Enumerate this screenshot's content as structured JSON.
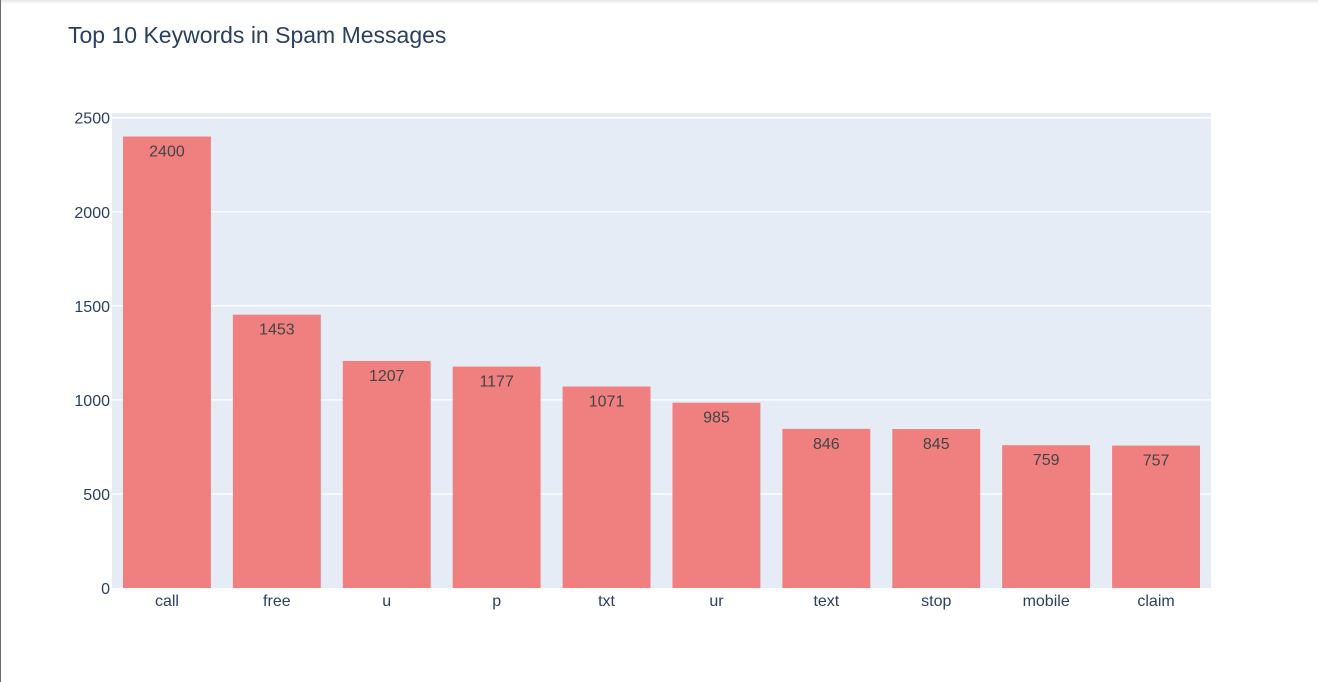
{
  "chart_data": {
    "type": "bar",
    "title": "Top 10 Keywords in Spam Messages",
    "xlabel": "",
    "ylabel": "",
    "categories": [
      "call",
      "free",
      "u",
      "p",
      "txt",
      "ur",
      "text",
      "stop",
      "mobile",
      "claim"
    ],
    "values": [
      2400,
      1453,
      1207,
      1177,
      1071,
      985,
      846,
      845,
      759,
      757
    ],
    "ylim": [
      0,
      2500
    ],
    "yticks": [
      0,
      500,
      1000,
      1500,
      2000,
      2500
    ],
    "grid": true,
    "legend": "none",
    "bar_color": "#f08080",
    "plot_bg": "#e5ecf6",
    "text_color": "#2a3f5f"
  }
}
